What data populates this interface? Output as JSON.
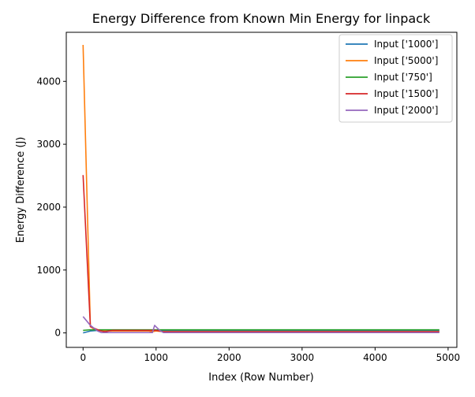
{
  "colors": {
    "axis": "#000000",
    "background": "#ffffff"
  },
  "chart_data": {
    "type": "line",
    "title": "Energy Difference from Known Min Energy for linpack",
    "xlabel": "Index (Row Number)",
    "ylabel": "Energy Difference (J)",
    "xlim": [
      -230,
      5120
    ],
    "ylim": [
      -230,
      4780
    ],
    "x_ticks": [
      0,
      1000,
      2000,
      3000,
      4000,
      5000
    ],
    "x_tick_labels": [
      "0",
      "1000",
      "2000",
      "3000",
      "4000",
      "5000"
    ],
    "y_ticks": [
      0,
      1000,
      2000,
      3000,
      4000
    ],
    "y_tick_labels": [
      "0",
      "1000",
      "2000",
      "3000",
      "4000"
    ],
    "grid": false,
    "legend_position": "top-right",
    "series": [
      {
        "name": "Input ['1000']",
        "color": "#1f77b4",
        "x": [
          0,
          100,
          200,
          300,
          400,
          500,
          1000,
          2000,
          3000,
          4000,
          4880
        ],
        "y": [
          0,
          30,
          40,
          45,
          40,
          40,
          40,
          40,
          40,
          40,
          40
        ]
      },
      {
        "name": "Input ['5000']",
        "color": "#ff7f0e",
        "x": [
          0,
          100,
          150,
          200,
          300,
          400,
          900,
          950,
          1000,
          1100,
          1200,
          2000,
          3000,
          4000,
          4880
        ],
        "y": [
          4580,
          100,
          60,
          40,
          30,
          30,
          30,
          20,
          30,
          20,
          20,
          20,
          20,
          20,
          20
        ]
      },
      {
        "name": "Input ['750']",
        "color": "#2ca02c",
        "x": [
          0,
          100,
          200,
          300,
          400,
          1000,
          2000,
          3000,
          4000,
          4880
        ],
        "y": [
          40,
          50,
          50,
          50,
          50,
          50,
          50,
          50,
          50,
          50
        ]
      },
      {
        "name": "Input ['1500']",
        "color": "#d62728",
        "x": [
          0,
          100,
          200,
          250,
          300,
          400,
          500,
          1000,
          1100,
          2000,
          3000,
          4000,
          4880
        ],
        "y": [
          2510,
          100,
          50,
          30,
          20,
          40,
          40,
          40,
          20,
          20,
          20,
          20,
          20
        ]
      },
      {
        "name": "Input ['2000']",
        "color": "#9467bd",
        "x": [
          0,
          100,
          200,
          250,
          300,
          400,
          900,
          950,
          980,
          1050,
          1100,
          1200,
          2000,
          3000,
          4000,
          4880
        ],
        "y": [
          260,
          120,
          30,
          5,
          5,
          5,
          5,
          5,
          120,
          40,
          5,
          5,
          5,
          5,
          5,
          5
        ]
      }
    ]
  }
}
